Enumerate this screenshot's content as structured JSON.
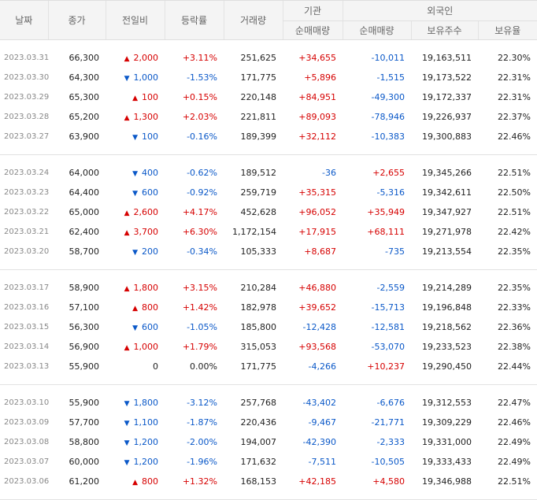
{
  "headers": {
    "date": "날짜",
    "close": "종가",
    "change": "전일비",
    "rate": "등락률",
    "volume": "거래량",
    "inst_group": "기관",
    "inst_net": "순매매량",
    "foreign_group": "외국인",
    "foreign_net": "순매매량",
    "foreign_hold": "보유주수",
    "foreign_ratio": "보유율"
  },
  "groups": [
    [
      {
        "date": "2023.03.31",
        "close": "66,300",
        "dir": "up",
        "change": "2,000",
        "rate": "+3.11%",
        "volume": "251,625",
        "inst": "+34,655",
        "foreign": "-10,011",
        "hold": "19,163,511",
        "ratio": "22.30%"
      },
      {
        "date": "2023.03.30",
        "close": "64,300",
        "dir": "down",
        "change": "1,000",
        "rate": "-1.53%",
        "volume": "171,775",
        "inst": "+5,896",
        "foreign": "-1,515",
        "hold": "19,173,522",
        "ratio": "22.31%"
      },
      {
        "date": "2023.03.29",
        "close": "65,300",
        "dir": "up",
        "change": "100",
        "rate": "+0.15%",
        "volume": "220,148",
        "inst": "+84,951",
        "foreign": "-49,300",
        "hold": "19,172,337",
        "ratio": "22.31%"
      },
      {
        "date": "2023.03.28",
        "close": "65,200",
        "dir": "up",
        "change": "1,300",
        "rate": "+2.03%",
        "volume": "221,811",
        "inst": "+89,093",
        "foreign": "-78,946",
        "hold": "19,226,937",
        "ratio": "22.37%"
      },
      {
        "date": "2023.03.27",
        "close": "63,900",
        "dir": "down",
        "change": "100",
        "rate": "-0.16%",
        "volume": "189,399",
        "inst": "+32,112",
        "foreign": "-10,383",
        "hold": "19,300,883",
        "ratio": "22.46%"
      }
    ],
    [
      {
        "date": "2023.03.24",
        "close": "64,000",
        "dir": "down",
        "change": "400",
        "rate": "-0.62%",
        "volume": "189,512",
        "inst": "-36",
        "foreign": "+2,655",
        "hold": "19,345,266",
        "ratio": "22.51%"
      },
      {
        "date": "2023.03.23",
        "close": "64,400",
        "dir": "down",
        "change": "600",
        "rate": "-0.92%",
        "volume": "259,719",
        "inst": "+35,315",
        "foreign": "-5,316",
        "hold": "19,342,611",
        "ratio": "22.50%"
      },
      {
        "date": "2023.03.22",
        "close": "65,000",
        "dir": "up",
        "change": "2,600",
        "rate": "+4.17%",
        "volume": "452,628",
        "inst": "+96,052",
        "foreign": "+35,949",
        "hold": "19,347,927",
        "ratio": "22.51%"
      },
      {
        "date": "2023.03.21",
        "close": "62,400",
        "dir": "up",
        "change": "3,700",
        "rate": "+6.30%",
        "volume": "1,172,154",
        "inst": "+17,915",
        "foreign": "+68,111",
        "hold": "19,271,978",
        "ratio": "22.42%"
      },
      {
        "date": "2023.03.20",
        "close": "58,700",
        "dir": "down",
        "change": "200",
        "rate": "-0.34%",
        "volume": "105,333",
        "inst": "+8,687",
        "foreign": "-735",
        "hold": "19,213,554",
        "ratio": "22.35%"
      }
    ],
    [
      {
        "date": "2023.03.17",
        "close": "58,900",
        "dir": "up",
        "change": "1,800",
        "rate": "+3.15%",
        "volume": "210,284",
        "inst": "+46,880",
        "foreign": "-2,559",
        "hold": "19,214,289",
        "ratio": "22.35%"
      },
      {
        "date": "2023.03.16",
        "close": "57,100",
        "dir": "up",
        "change": "800",
        "rate": "+1.42%",
        "volume": "182,978",
        "inst": "+39,652",
        "foreign": "-15,713",
        "hold": "19,196,848",
        "ratio": "22.33%"
      },
      {
        "date": "2023.03.15",
        "close": "56,300",
        "dir": "down",
        "change": "600",
        "rate": "-1.05%",
        "volume": "185,800",
        "inst": "-12,428",
        "foreign": "-12,581",
        "hold": "19,218,562",
        "ratio": "22.36%"
      },
      {
        "date": "2023.03.14",
        "close": "56,900",
        "dir": "up",
        "change": "1,000",
        "rate": "+1.79%",
        "volume": "315,053",
        "inst": "+93,568",
        "foreign": "-53,070",
        "hold": "19,233,523",
        "ratio": "22.38%"
      },
      {
        "date": "2023.03.13",
        "close": "55,900",
        "dir": "none",
        "change": "0",
        "rate": "0.00%",
        "volume": "171,775",
        "inst": "-4,266",
        "foreign": "+10,237",
        "hold": "19,290,450",
        "ratio": "22.44%"
      }
    ],
    [
      {
        "date": "2023.03.10",
        "close": "55,900",
        "dir": "down",
        "change": "1,800",
        "rate": "-3.12%",
        "volume": "257,768",
        "inst": "-43,402",
        "foreign": "-6,676",
        "hold": "19,312,553",
        "ratio": "22.47%"
      },
      {
        "date": "2023.03.09",
        "close": "57,700",
        "dir": "down",
        "change": "1,100",
        "rate": "-1.87%",
        "volume": "220,436",
        "inst": "-9,467",
        "foreign": "-21,771",
        "hold": "19,309,229",
        "ratio": "22.46%"
      },
      {
        "date": "2023.03.08",
        "close": "58,800",
        "dir": "down",
        "change": "1,200",
        "rate": "-2.00%",
        "volume": "194,007",
        "inst": "-42,390",
        "foreign": "-2,333",
        "hold": "19,331,000",
        "ratio": "22.49%"
      },
      {
        "date": "2023.03.07",
        "close": "60,000",
        "dir": "down",
        "change": "1,200",
        "rate": "-1.96%",
        "volume": "171,632",
        "inst": "-7,511",
        "foreign": "-10,505",
        "hold": "19,333,433",
        "ratio": "22.49%"
      },
      {
        "date": "2023.03.06",
        "close": "61,200",
        "dir": "up",
        "change": "800",
        "rate": "+1.32%",
        "volume": "168,153",
        "inst": "+42,185",
        "foreign": "+4,580",
        "hold": "19,346,988",
        "ratio": "22.51%"
      }
    ]
  ]
}
